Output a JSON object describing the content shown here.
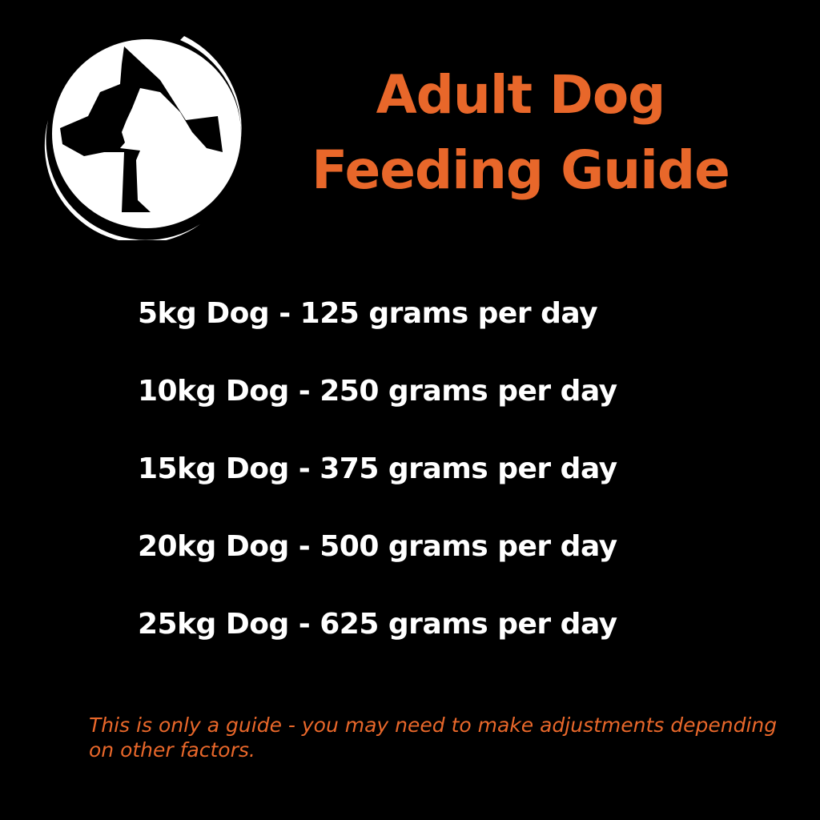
{
  "logo": {
    "icon": "dog-and-cat-silhouette-logo"
  },
  "title": {
    "line1": "Adult Dog",
    "line2": "Feeding Guide"
  },
  "guide": [
    "5kg Dog - 125 grams per day",
    "10kg Dog - 250 grams per day",
    "15kg Dog - 375 grams per day",
    "20kg Dog - 500 grams per day",
    "25kg Dog - 625 grams per day"
  ],
  "note": "This is only a guide - you may need to make adjustments depending on other factors.",
  "colors": {
    "accent": "#e8672a",
    "background": "#000000",
    "text": "#ffffff"
  }
}
